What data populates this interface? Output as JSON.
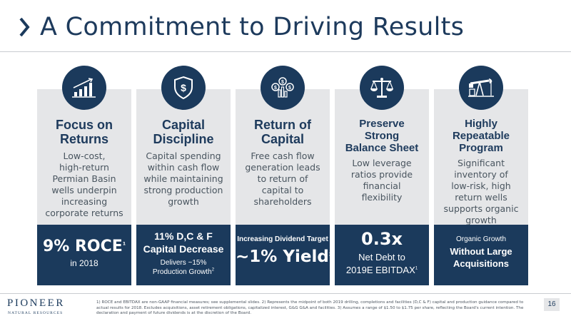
{
  "header": {
    "title": "A Commitment to Driving Results",
    "chevron_icon": "chevron-right-icon"
  },
  "columns": [
    {
      "icon": "rising-bar-chart-icon",
      "title_lines": [
        "Focus on",
        "Returns"
      ],
      "desc_lines": [
        "Low-cost,",
        "high-return",
        "Permian Basin",
        "wells underpin",
        "increasing",
        "corporate returns"
      ],
      "foot": {
        "main": "9% ROCE",
        "main_sup": "1",
        "sub": "in 2018"
      }
    },
    {
      "icon": "dollar-shield-icon",
      "title_lines": [
        "Capital",
        "Discipline"
      ],
      "desc_lines": [
        "Capital spending",
        "within cash flow",
        "while maintaining",
        "strong production",
        "growth"
      ],
      "foot": {
        "line1": "11% D,C & F",
        "line2": "Capital Decrease",
        "line3": "Delivers ~15%",
        "line4": "Production Growth",
        "line4_sup": "2"
      }
    },
    {
      "icon": "dollar-coins-bars-icon",
      "title_lines": [
        "Return of",
        "Capital"
      ],
      "desc_lines": [
        "Free cash flow",
        "generation leads",
        "to return of",
        "capital to",
        "shareholders"
      ],
      "foot": {
        "top": "Increasing Dividend Target",
        "main": "~1% Yield",
        "main_sup": "3"
      }
    },
    {
      "icon": "balance-scale-icon",
      "title_lines": [
        "Preserve",
        "Strong",
        "Balance Sheet"
      ],
      "desc_lines": [
        "Low leverage",
        "ratios provide",
        "financial",
        "flexibility"
      ],
      "foot": {
        "main": "0.3x",
        "line2": "Net Debt to",
        "line3": "2019E EBITDAX",
        "line3_sup": "1"
      }
    },
    {
      "icon": "oil-pumpjack-icon",
      "title_lines": [
        "Highly",
        "Repeatable",
        "Program"
      ],
      "desc_lines": [
        "Significant",
        "inventory of",
        "low-risk, high",
        "return wells",
        "supports organic",
        "growth"
      ],
      "foot": {
        "top": "Organic Growth",
        "line2": "Without Large",
        "line3": "Acquisitions"
      }
    }
  ],
  "footer": {
    "logo_name": "PIONEER",
    "logo_sub": "NATURAL RESOURCES",
    "footnote": "1) ROCE and EBITDAX are non-GAAP financial measures; see supplemental slides.  2) Represents the midpoint of both 2019 drilling, completions and facilities (D,C & F) capital and production guidance compared to actual results for 2018.  Excludes acquisitions, asset retirement obligations, capitalized interest, G&G G&A and facilities.  3) Assumes a range of $1.50 to $1.75 per share, reflecting the Board's current intention. The declaration and payment of future dividends is at the discretion of the Board.",
    "page_number": "16"
  },
  "colors": {
    "navy": "#1b3a5c",
    "panel_gray": "#e5e6e8",
    "text_gray": "#49555f"
  }
}
